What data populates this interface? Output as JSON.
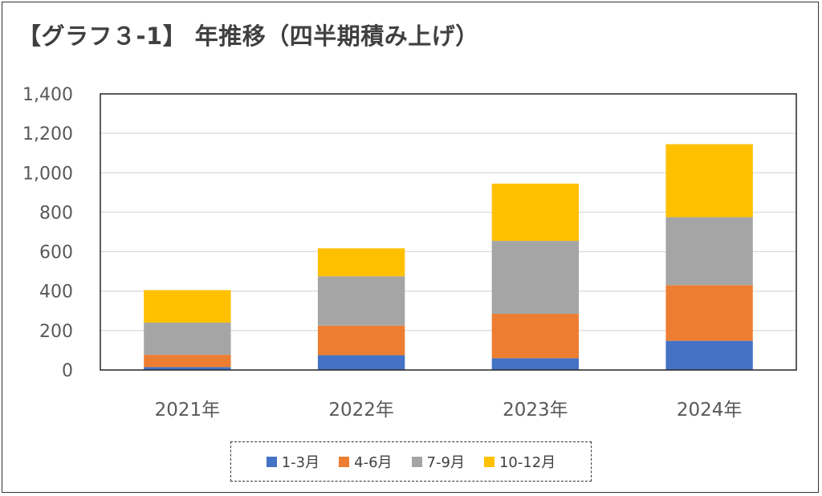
{
  "title": "【グラフ３-1】 年推移（四半期積み上げ）",
  "chart_data": {
    "type": "bar",
    "stacked": true,
    "categories": [
      "2021年",
      "2022年",
      "2023年",
      "2024年"
    ],
    "series": [
      {
        "name": "1-3月",
        "color": "#4472C4",
        "values": [
          15,
          75,
          60,
          148
        ]
      },
      {
        "name": "4-6月",
        "color": "#ED7D31",
        "values": [
          62,
          150,
          225,
          282
        ]
      },
      {
        "name": "7-9月",
        "color": "#A5A5A5",
        "values": [
          163,
          250,
          370,
          345
        ]
      },
      {
        "name": "10-12月",
        "color": "#FFC000",
        "values": [
          165,
          142,
          290,
          370
        ]
      }
    ],
    "yticks": [
      "0",
      "200",
      "400",
      "600",
      "800",
      "1,000",
      "1,200",
      "1,400"
    ],
    "ylim": [
      0,
      1400
    ],
    "grid": true,
    "legend_position": "bottom"
  }
}
